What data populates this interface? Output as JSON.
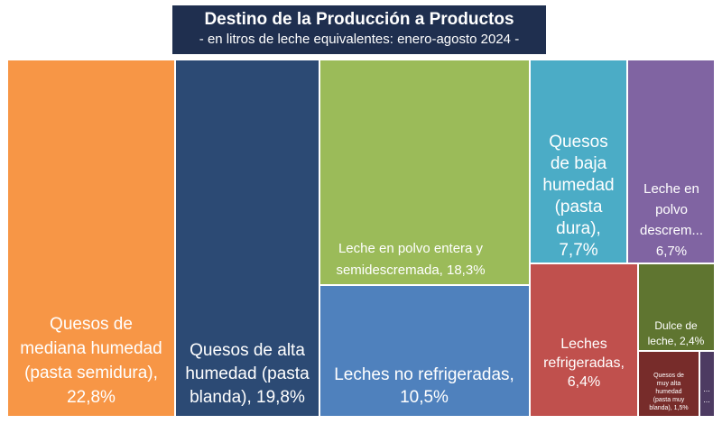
{
  "title": "Destino de la Producción a Productos",
  "subtitle": "- en litros de leche equivalentes: enero-agosto 2024 -",
  "chart_data": {
    "type": "treemap",
    "title": "Destino de la Producción a Productos",
    "subtitle": "- en litros de leche equivalentes: enero-agosto 2024 -",
    "unit": "%",
    "items": [
      {
        "name": "Quesos de mediana humedad (pasta semidura)",
        "label_lines": [
          "Quesos de",
          "mediana humedad",
          "(pasta semidura),",
          "22,8%"
        ],
        "value": 22.8,
        "color": "#f79646"
      },
      {
        "name": "Quesos de alta humedad (pasta blanda)",
        "label_lines": [
          "Quesos de alta",
          "humedad (pasta",
          "blanda), 19,8%"
        ],
        "value": 19.8,
        "color": "#2c4a74"
      },
      {
        "name": "Leche en polvo entera y semidescremada",
        "label_lines": [
          "Leche en polvo entera y",
          "semidescremada, 18,3%"
        ],
        "value": 18.3,
        "color": "#9bbb59"
      },
      {
        "name": "Leches no refrigeradas",
        "label_lines": [
          "Leches no refrigeradas,",
          "10,5%"
        ],
        "value": 10.5,
        "color": "#4f81bd"
      },
      {
        "name": "Quesos de baja humedad (pasta dura)",
        "label_lines": [
          "Quesos",
          "de baja",
          "humedad",
          "(pasta",
          "dura),",
          "7,7%"
        ],
        "value": 7.7,
        "color": "#4bacc6"
      },
      {
        "name": "Leche en polvo descremada",
        "label_lines": [
          "Leche en",
          "polvo",
          "descrem...",
          "6,7%"
        ],
        "value": 6.7,
        "color": "#8064a2"
      },
      {
        "name": "Leches refrigeradas",
        "label_lines": [
          "Leches",
          "refrigeradas,",
          "6,4%"
        ],
        "value": 6.4,
        "color": "#c0504d"
      },
      {
        "name": "Dulce de leche",
        "label_lines": [
          "Dulce de",
          "leche, 2,4%"
        ],
        "value": 2.4,
        "color": "#5f7530"
      },
      {
        "name": "Quesos de muy alta humedad (pasta muy blanda)",
        "label_lines": [
          "Quesos de",
          "muy alta",
          "humedad",
          "(pasta muy",
          "blanda), 1,5%"
        ],
        "value": 1.5,
        "color": "#772c2a"
      },
      {
        "name": "...",
        "label_lines": [
          "...",
          "..."
        ],
        "value": 0.9,
        "color": "#4d3b62"
      }
    ]
  }
}
